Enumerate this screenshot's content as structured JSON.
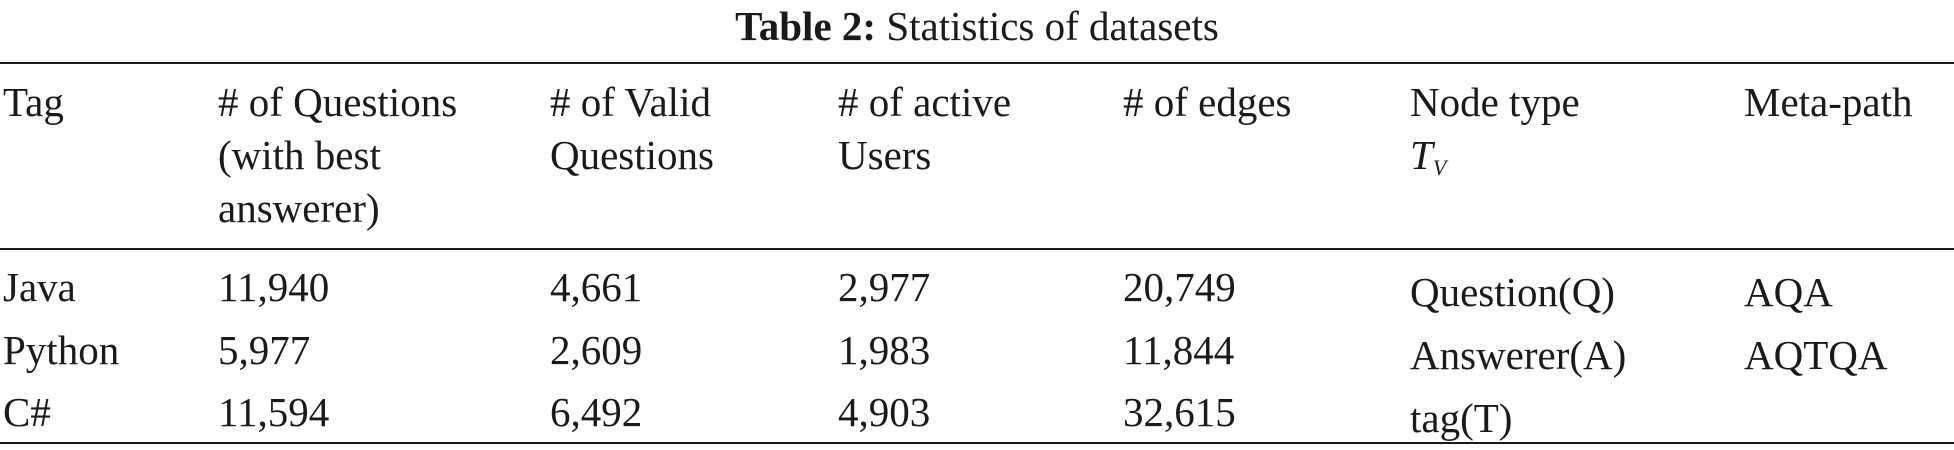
{
  "caption": {
    "label": "Table 2:",
    "text": "Statistics of datasets"
  },
  "header": {
    "tag": "Tag",
    "questions": [
      "# of Questions",
      "(with best",
      "answerer)"
    ],
    "valid_questions": [
      "# of Valid",
      "Questions"
    ],
    "active_users": [
      "# of active",
      "Users"
    ],
    "edges": "# of edges",
    "node_type": [
      "Node type"
    ],
    "node_type_math": {
      "base": "T",
      "sub": "V"
    },
    "meta_path": "Meta-path"
  },
  "rows": [
    {
      "tag": "Java",
      "questions": "11,940",
      "valid": "4,661",
      "users": "2,977",
      "edges": "20,749"
    },
    {
      "tag": "Python",
      "questions": "5,977",
      "valid": "2,609",
      "users": "1,983",
      "edges": "11,844"
    },
    {
      "tag": "C#",
      "questions": "11,594",
      "valid": "6,492",
      "users": "4,903",
      "edges": "32,615"
    }
  ],
  "node_types": [
    "Question(Q)",
    "Answerer(A)",
    "tag(T)"
  ],
  "meta_paths": [
    "AQA",
    "AQTQA"
  ]
}
